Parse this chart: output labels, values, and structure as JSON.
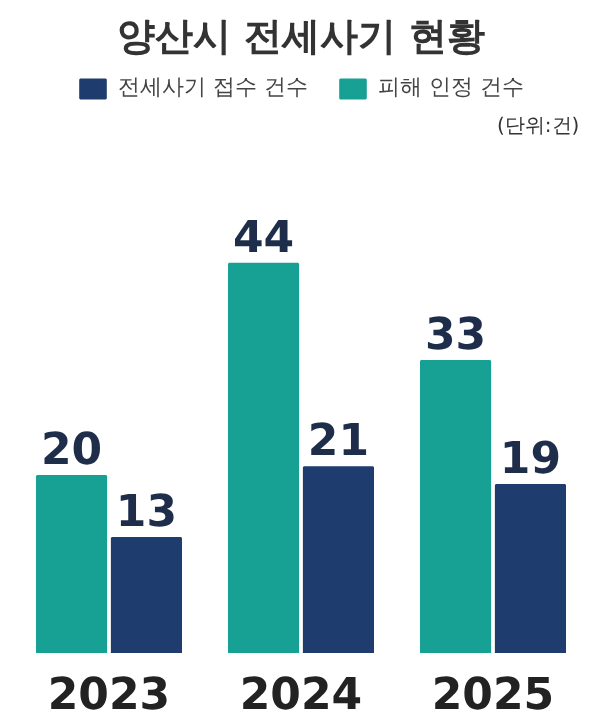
{
  "chart_data": {
    "type": "bar",
    "title": "양산시 전세사기 현황",
    "categories": [
      "2023",
      "2024",
      "2025"
    ],
    "series": [
      {
        "name": "피해 인정 건수",
        "color": "#17a094",
        "values": [
          20,
          44,
          33
        ]
      },
      {
        "name": "전세사기 접수 건수",
        "color": "#1e3c6e",
        "values": [
          13,
          21,
          19
        ]
      }
    ],
    "data_labels": true,
    "legend": "top",
    "annotations": [
      "(단위:건)"
    ]
  }
}
